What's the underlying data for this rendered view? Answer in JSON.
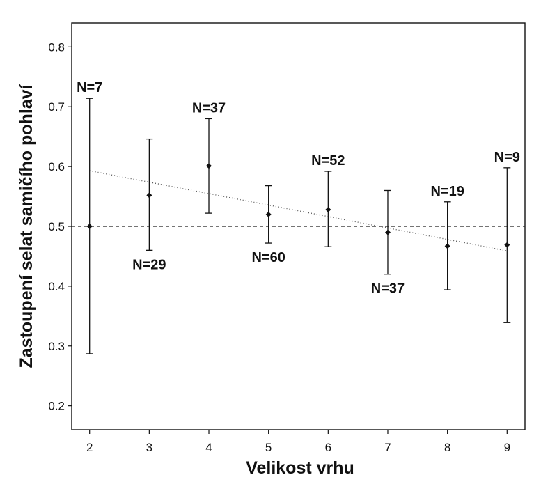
{
  "chart_data": {
    "type": "scatter",
    "xlabel": "Velikost vrhu",
    "ylabel": "Zastoupení selat samičího pohlaví",
    "xlim": [
      1.7,
      9.3
    ],
    "ylim": [
      0.16,
      0.84
    ],
    "x_ticks": [
      2,
      3,
      4,
      5,
      6,
      7,
      8,
      9
    ],
    "y_ticks": [
      0.2,
      0.3,
      0.4,
      0.5,
      0.6,
      0.7,
      0.8
    ],
    "grid": false,
    "points": [
      {
        "x": 2,
        "y": 0.5,
        "low": 0.287,
        "high": 0.714,
        "label": "N=7",
        "label_pos": "above"
      },
      {
        "x": 3,
        "y": 0.552,
        "low": 0.46,
        "high": 0.646,
        "label": "N=29",
        "label_pos": "below"
      },
      {
        "x": 4,
        "y": 0.601,
        "low": 0.522,
        "high": 0.68,
        "label": "N=37",
        "label_pos": "above"
      },
      {
        "x": 5,
        "y": 0.52,
        "low": 0.472,
        "high": 0.568,
        "label": "N=60",
        "label_pos": "below"
      },
      {
        "x": 6,
        "y": 0.528,
        "low": 0.466,
        "high": 0.592,
        "label": "N=52",
        "label_pos": "above"
      },
      {
        "x": 7,
        "y": 0.49,
        "low": 0.42,
        "high": 0.56,
        "label": "N=37",
        "label_pos": "below"
      },
      {
        "x": 8,
        "y": 0.467,
        "low": 0.394,
        "high": 0.541,
        "label": "N=19",
        "label_pos": "above"
      },
      {
        "x": 9,
        "y": 0.469,
        "low": 0.339,
        "high": 0.598,
        "label": "N=9",
        "label_pos": "above"
      }
    ],
    "reference_line": {
      "y": 0.5,
      "style": "dashed"
    },
    "trend_line": {
      "x": [
        2,
        9
      ],
      "y": [
        0.593,
        0.459
      ],
      "style": "dotted"
    }
  }
}
